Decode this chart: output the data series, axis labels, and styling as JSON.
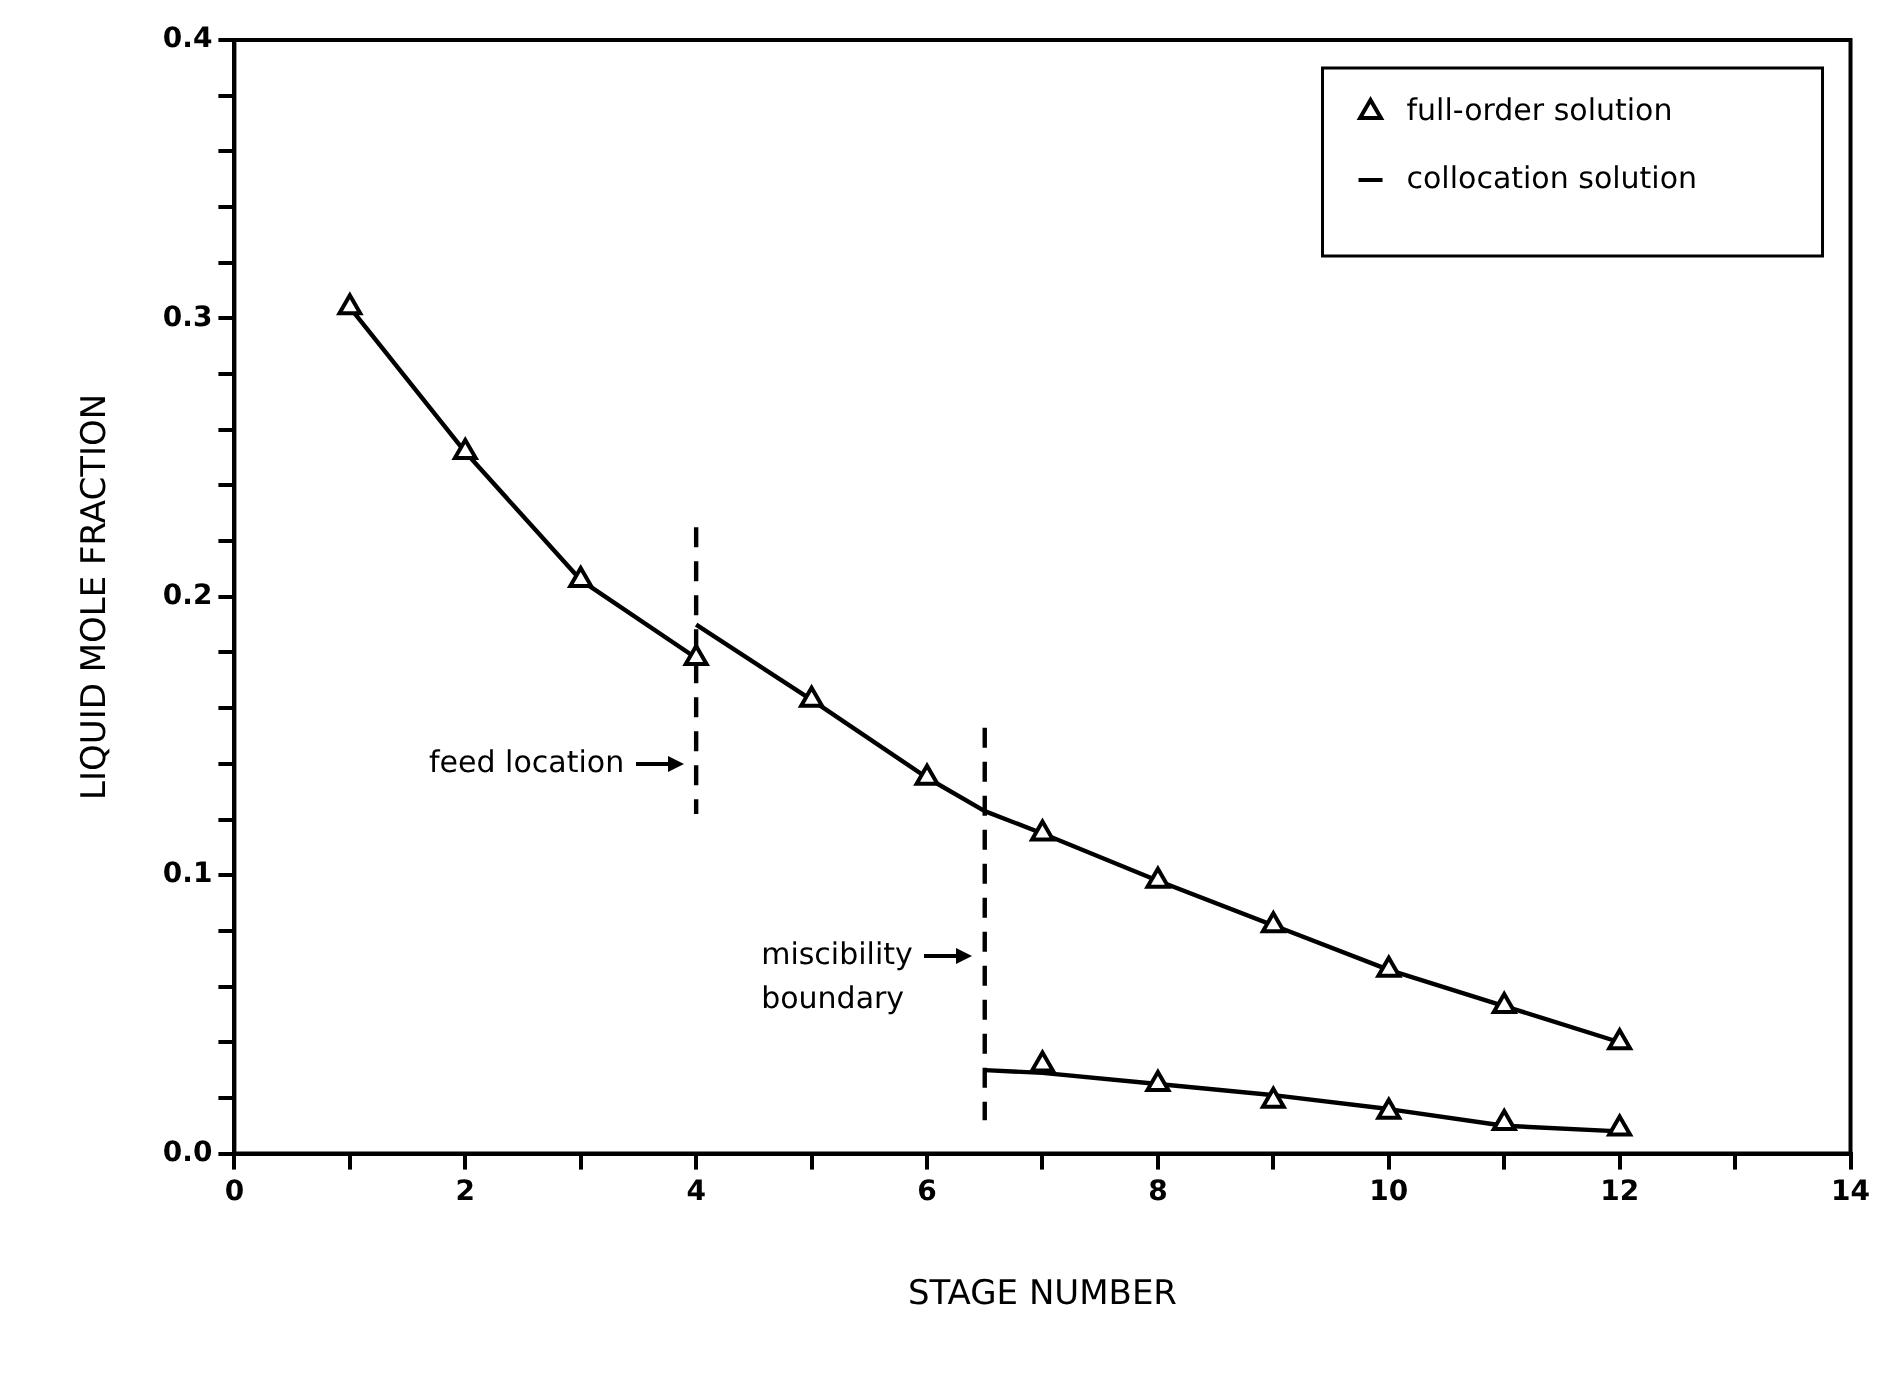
{
  "chart_data": {
    "type": "line",
    "xlabel": "STAGE NUMBER",
    "ylabel": "LIQUID MOLE FRACTION",
    "xlim": [
      0,
      14
    ],
    "ylim": [
      0,
      0.4
    ],
    "xticks": [
      0,
      {
        "value": 1,
        "label": null
      },
      2,
      {
        "value": 3,
        "label": null
      },
      4,
      {
        "value": 5,
        "label": null
      },
      6,
      {
        "value": 7,
        "label": null
      },
      8,
      {
        "value": 9,
        "label": null
      },
      10,
      {
        "value": 11,
        "label": null
      },
      12,
      {
        "value": 13,
        "label": null
      },
      14
    ],
    "yticks": [
      {
        "value": 0,
        "label": "0.0"
      },
      {
        "value": 0.02,
        "label": null
      },
      {
        "value": 0.04,
        "label": null
      },
      {
        "value": 0.06,
        "label": null
      },
      {
        "value": 0.08,
        "label": null
      },
      {
        "value": 0.1,
        "label": "0.1"
      },
      {
        "value": 0.12,
        "label": null
      },
      {
        "value": 0.14,
        "label": null
      },
      {
        "value": 0.16,
        "label": null
      },
      {
        "value": 0.18,
        "label": null
      },
      {
        "value": 0.2,
        "label": "0.2"
      },
      {
        "value": 0.22,
        "label": null
      },
      {
        "value": 0.24,
        "label": null
      },
      {
        "value": 0.26,
        "label": null
      },
      {
        "value": 0.28,
        "label": null
      },
      {
        "value": 0.3,
        "label": "0.3"
      },
      {
        "value": 0.32,
        "label": null
      },
      {
        "value": 0.34,
        "label": null
      },
      {
        "value": 0.36,
        "label": null
      },
      {
        "value": 0.38,
        "label": null
      },
      {
        "value": 0.4,
        "label": "0.4"
      }
    ],
    "legend": "top right",
    "series": [
      {
        "name": "full-order solution",
        "type": "scatter",
        "marker": "triangle",
        "color": "#000000",
        "x": [
          1,
          2,
          3,
          4,
          5,
          6,
          7,
          8,
          9,
          10,
          11,
          12,
          7,
          8,
          9,
          10,
          11,
          12
        ],
        "values": [
          0.304,
          0.252,
          0.206,
          0.178,
          0.163,
          0.135,
          0.115,
          0.098,
          0.082,
          0.066,
          0.053,
          0.04,
          0.032,
          0.025,
          0.019,
          0.015,
          0.011,
          0.009
        ]
      },
      {
        "name": "collocation solution",
        "type": "line",
        "marker": "none",
        "line_style": "solid",
        "color": "#000000",
        "x": [
          1,
          2,
          3,
          4
        ],
        "values": [
          0.304,
          0.252,
          0.206,
          0.178
        ]
      },
      {
        "type": "line",
        "marker": "none",
        "line_style": "solid",
        "color": "#000000",
        "x": [
          4,
          5,
          6,
          6.5,
          7,
          8,
          9,
          10,
          11,
          12
        ],
        "values": [
          0.19,
          0.163,
          0.135,
          0.123,
          0.115,
          0.098,
          0.082,
          0.066,
          0.053,
          0.04
        ]
      },
      {
        "type": "line",
        "marker": "none",
        "line_style": "solid",
        "color": "#000000",
        "x": [
          6.5,
          7,
          8,
          9,
          10,
          11,
          12
        ],
        "values": [
          0.03,
          0.029,
          0.025,
          0.021,
          0.016,
          0.01,
          0.008
        ]
      },
      {
        "type": "line",
        "marker": "none",
        "line_style": "dashed",
        "color": "#000000",
        "x": [
          4,
          4
        ],
        "values": [
          0.225,
          0.122
        ]
      },
      {
        "type": "line",
        "marker": "none",
        "line_style": "dashed",
        "color": "#000000",
        "x": [
          6.5,
          6.5
        ],
        "values": [
          0.153,
          0.012
        ]
      }
    ],
    "annotations": [
      {
        "text": "feed location",
        "x": 4,
        "y": 0.14
      },
      {
        "text": "miscibility\nboundary",
        "x": 6.5,
        "y": 0.071
      }
    ]
  }
}
